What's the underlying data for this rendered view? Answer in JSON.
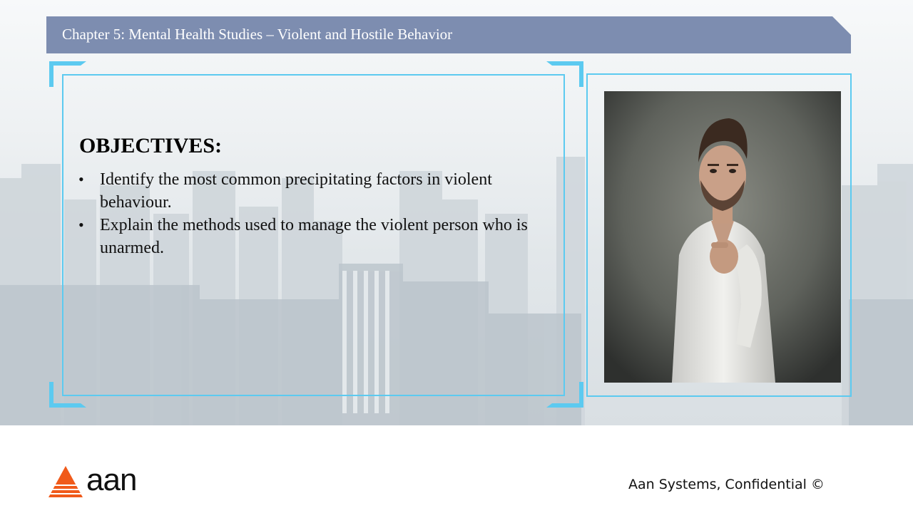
{
  "header": {
    "title": "Chapter 5: Mental Health Studies – Violent and Hostile Behavior"
  },
  "content": {
    "heading": "OBJECTIVES:",
    "bullet_symbol": "•",
    "bullets": [
      "Identify the most common precipitating factors in violent behaviour.",
      "Explain the methods used to manage the violent person who is unarmed."
    ]
  },
  "footer": {
    "logo_text": "aan",
    "confidential": "Aan Systems, Confidential ©"
  },
  "colors": {
    "header_bar": "#7d8db0",
    "frame_accent": "#5ccaf0",
    "logo_orange": "#f05a1a"
  }
}
